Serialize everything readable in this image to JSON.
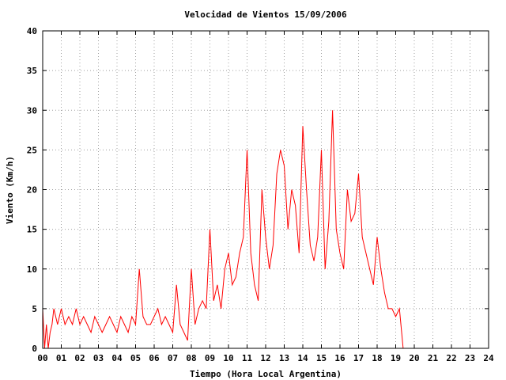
{
  "chart_data": {
    "type": "line",
    "title": "Velocidad de Vientos 15/09/2006",
    "xlabel": "Tiempo (Hora Local Argentina)",
    "ylabel": "Viento (Km/h)",
    "xlim": [
      0,
      24
    ],
    "ylim": [
      0,
      40
    ],
    "x_ticks": [
      "00",
      "01",
      "02",
      "03",
      "04",
      "05",
      "06",
      "07",
      "08",
      "09",
      "10",
      "11",
      "12",
      "13",
      "14",
      "15",
      "16",
      "17",
      "18",
      "19",
      "20",
      "21",
      "22",
      "23",
      "24"
    ],
    "y_ticks": [
      "0",
      "5",
      "10",
      "15",
      "20",
      "25",
      "30",
      "35",
      "40"
    ],
    "grid": true,
    "line_color": "#ff0000",
    "series": [
      {
        "x": [
          0.0,
          0.1,
          0.2,
          0.3,
          0.4,
          0.5,
          0.6,
          0.8,
          1.0,
          1.2,
          1.4,
          1.6,
          1.8,
          2.0,
          2.2,
          2.4,
          2.6,
          2.8,
          3.0,
          3.2,
          3.4,
          3.6,
          3.8,
          4.0,
          4.2,
          4.4,
          4.6,
          4.8,
          5.0,
          5.2,
          5.4,
          5.6,
          5.8,
          6.0,
          6.2,
          6.4,
          6.6,
          6.8,
          7.0,
          7.2,
          7.4,
          7.6,
          7.8,
          8.0,
          8.2,
          8.4,
          8.6,
          8.8,
          9.0,
          9.2,
          9.4,
          9.6,
          9.8,
          10.0,
          10.2,
          10.4,
          10.6,
          10.8,
          11.0,
          11.2,
          11.4,
          11.6,
          11.8,
          12.0,
          12.2,
          12.4,
          12.6,
          12.8,
          13.0,
          13.2,
          13.4,
          13.6,
          13.8,
          14.0,
          14.2,
          14.4,
          14.6,
          14.8,
          15.0,
          15.2,
          15.4,
          15.6,
          15.8,
          16.0,
          16.2,
          16.4,
          16.6,
          16.8,
          17.0,
          17.2,
          17.4,
          17.6,
          17.8,
          18.0,
          18.2,
          18.4,
          18.6,
          18.8,
          19.0,
          19.2,
          19.4
        ],
        "y": [
          5,
          0,
          3,
          0,
          2,
          3,
          5,
          3,
          5,
          3,
          4,
          3,
          5,
          3,
          4,
          3,
          2,
          4,
          3,
          2,
          3,
          4,
          3,
          2,
          4,
          3,
          2,
          4,
          3,
          10,
          4,
          3,
          3,
          4,
          5,
          3,
          4,
          3,
          2,
          8,
          3,
          2,
          1,
          10,
          3,
          5,
          6,
          5,
          15,
          6,
          8,
          5,
          10,
          12,
          8,
          9,
          12,
          14,
          25,
          12,
          8,
          6,
          20,
          14,
          10,
          13,
          22,
          25,
          23,
          15,
          20,
          18,
          12,
          28,
          20,
          13,
          11,
          14,
          25,
          10,
          16,
          30,
          15,
          12,
          10,
          20,
          16,
          17,
          22,
          14,
          12,
          10,
          8,
          14,
          10,
          7,
          5,
          5,
          4,
          5,
          0
        ]
      }
    ]
  }
}
